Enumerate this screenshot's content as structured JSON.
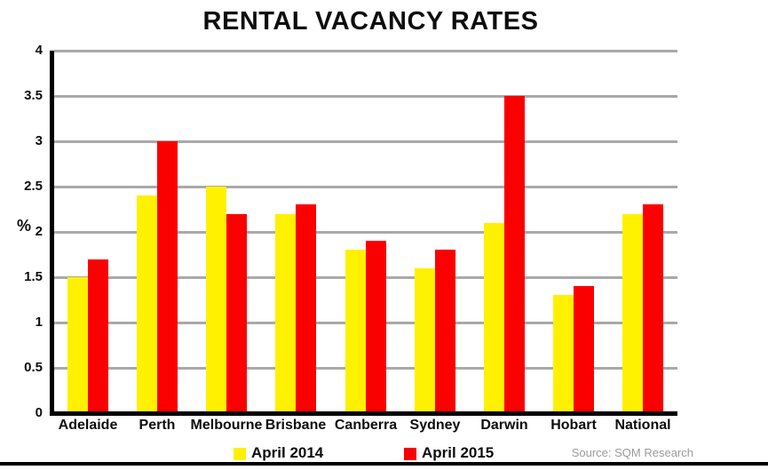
{
  "chart_data": {
    "type": "bar",
    "title": "RENTAL VACANCY RATES",
    "ylabel": "%",
    "xlabel": "",
    "source": "Source: SQM Research",
    "categories": [
      "Adelaide",
      "Perth",
      "Melbourne",
      "Brisbane",
      "Canberra",
      "Sydney",
      "Darwin",
      "Hobart",
      "National"
    ],
    "series": [
      {
        "name": "April 2014",
        "color": "#fff100",
        "values": [
          1.5,
          2.4,
          2.5,
          2.2,
          1.8,
          1.6,
          2.1,
          1.3,
          2.2
        ]
      },
      {
        "name": "April 2015",
        "color": "#fa0000",
        "values": [
          1.7,
          3.0,
          2.2,
          2.3,
          1.9,
          1.8,
          3.5,
          1.4,
          2.3
        ]
      }
    ],
    "ylim": [
      0,
      4
    ],
    "yticks": [
      {
        "value": 0,
        "label": "0"
      },
      {
        "value": 0.5,
        "label": "0.5"
      },
      {
        "value": 1,
        "label": "1"
      },
      {
        "value": 1.5,
        "label": "1.5"
      },
      {
        "value": 2,
        "label": "2"
      },
      {
        "value": 2.5,
        "label": "2.5"
      },
      {
        "value": 3,
        "label": "3"
      },
      {
        "value": 3.5,
        "label": "3.5"
      },
      {
        "value": 4,
        "label": "4"
      }
    ],
    "grid": true,
    "gridline_color": "#a9a9a9",
    "axis_color": "#000000",
    "legend_position": "bottom"
  }
}
